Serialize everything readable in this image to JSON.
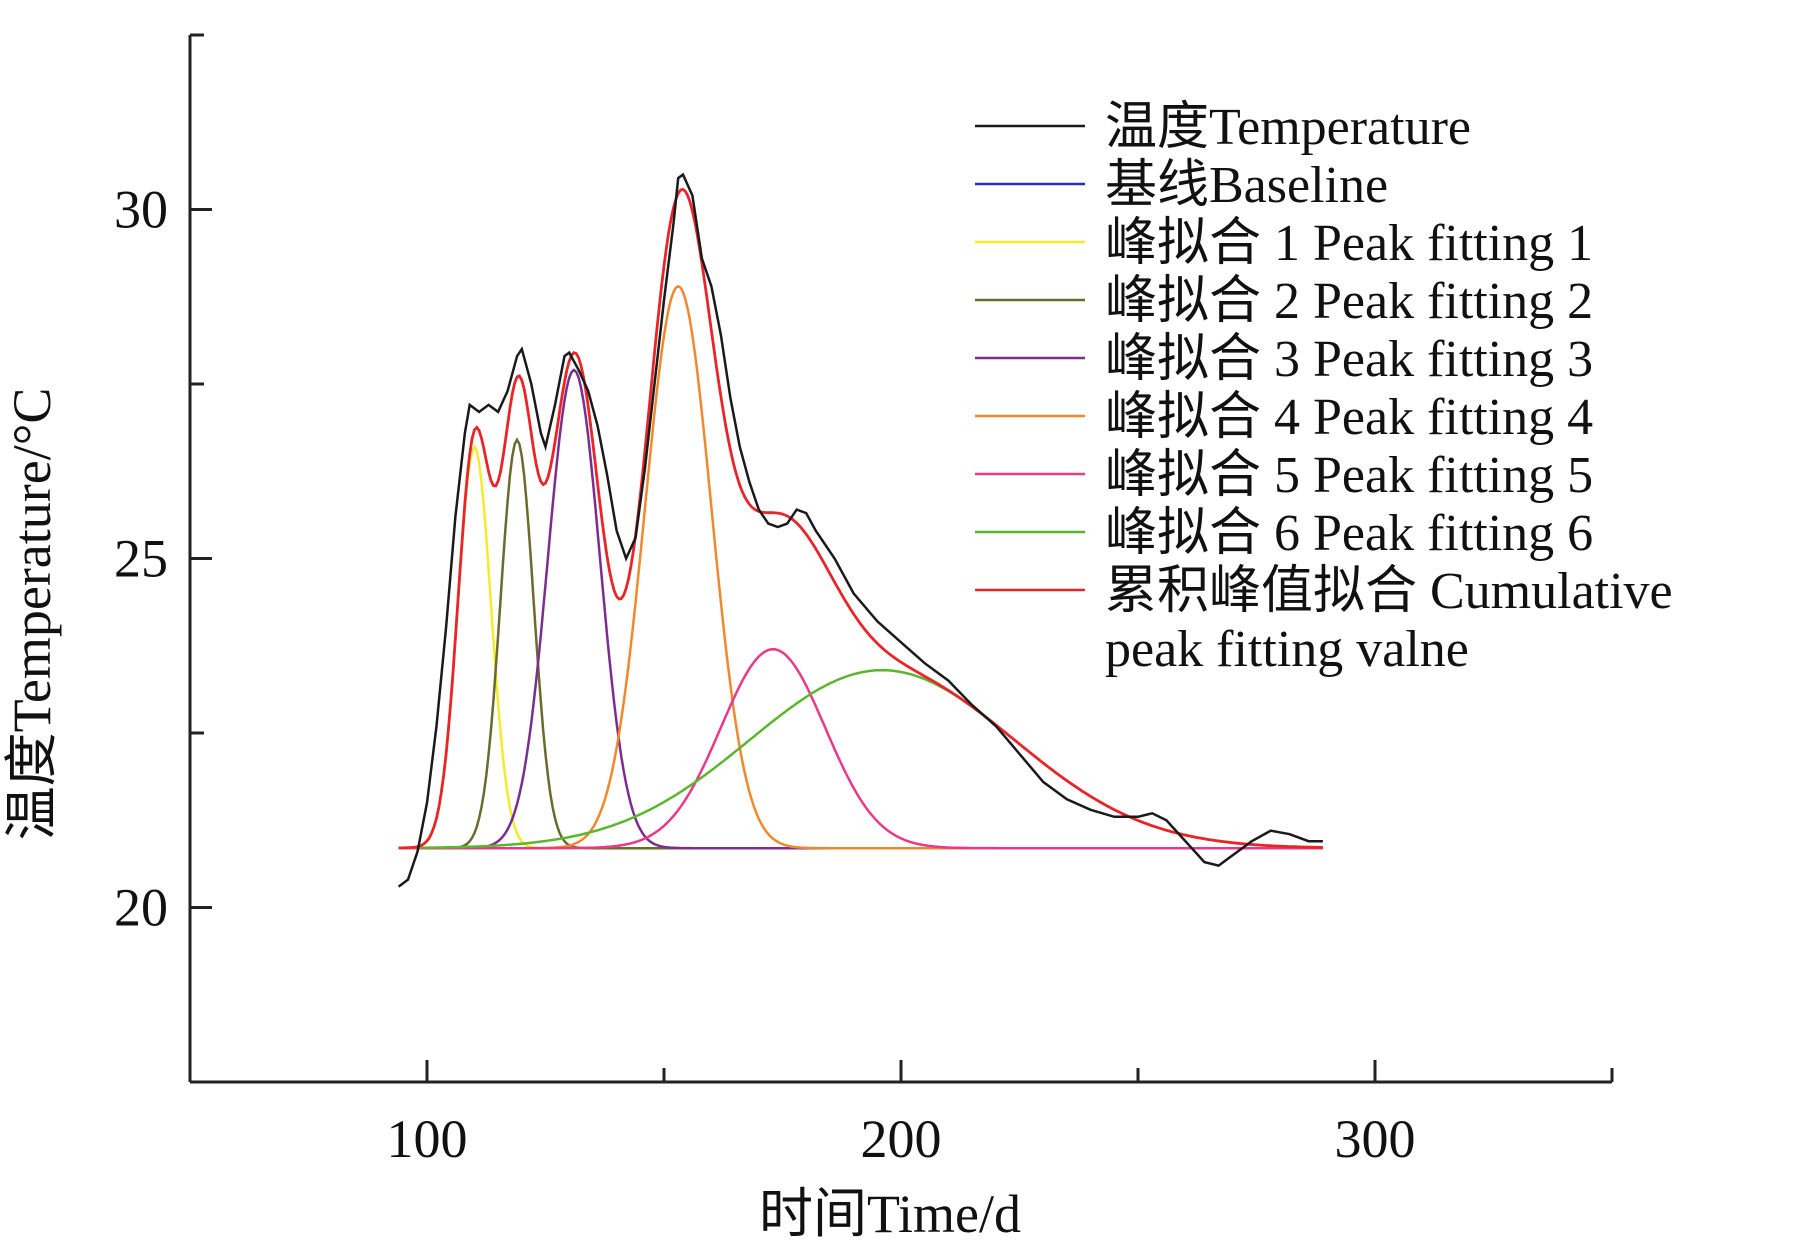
{
  "chart_data": {
    "type": "line",
    "xlabel": "时间Time/d",
    "ylabel": "温度Temperature/°C",
    "xlim": [
      50,
      350
    ],
    "ylim": [
      17.5,
      32.5
    ],
    "x_ticks": [
      100,
      200,
      300
    ],
    "y_ticks": [
      20,
      25,
      30
    ],
    "legend_position": "top-right",
    "series": [
      {
        "name": "温度Temperature",
        "color": "#1a1a1a",
        "points": [
          [
            94,
            20.3
          ],
          [
            96,
            20.4
          ],
          [
            98,
            20.8
          ],
          [
            100,
            21.5
          ],
          [
            102,
            22.6
          ],
          [
            104,
            24.0
          ],
          [
            106,
            25.6
          ],
          [
            108,
            26.8
          ],
          [
            109,
            27.2
          ],
          [
            111,
            27.1
          ],
          [
            113,
            27.2
          ],
          [
            115,
            27.1
          ],
          [
            117,
            27.4
          ],
          [
            119,
            27.9
          ],
          [
            120,
            28.0
          ],
          [
            122,
            27.5
          ],
          [
            124,
            26.8
          ],
          [
            125,
            26.6
          ],
          [
            127,
            27.2
          ],
          [
            129,
            27.9
          ],
          [
            130,
            27.95
          ],
          [
            132,
            27.7
          ],
          [
            134,
            27.4
          ],
          [
            136,
            26.9
          ],
          [
            138,
            26.2
          ],
          [
            140,
            25.4
          ],
          [
            142,
            25.0
          ],
          [
            144,
            25.3
          ],
          [
            146,
            26.3
          ],
          [
            148,
            27.5
          ],
          [
            150,
            28.7
          ],
          [
            152,
            29.8
          ],
          [
            153,
            30.45
          ],
          [
            154,
            30.5
          ],
          [
            156,
            30.2
          ],
          [
            158,
            29.3
          ],
          [
            160,
            28.9
          ],
          [
            162,
            28.2
          ],
          [
            164,
            27.3
          ],
          [
            166,
            26.6
          ],
          [
            168,
            26.1
          ],
          [
            170,
            25.7
          ],
          [
            172,
            25.5
          ],
          [
            174,
            25.45
          ],
          [
            176,
            25.5
          ],
          [
            178,
            25.7
          ],
          [
            180,
            25.65
          ],
          [
            182,
            25.4
          ],
          [
            186,
            25.0
          ],
          [
            190,
            24.5
          ],
          [
            195,
            24.1
          ],
          [
            200,
            23.8
          ],
          [
            205,
            23.5
          ],
          [
            210,
            23.25
          ],
          [
            215,
            22.9
          ],
          [
            220,
            22.6
          ],
          [
            225,
            22.2
          ],
          [
            230,
            21.8
          ],
          [
            235,
            21.55
          ],
          [
            240,
            21.4
          ],
          [
            245,
            21.3
          ],
          [
            250,
            21.3
          ],
          [
            253,
            21.35
          ],
          [
            256,
            21.25
          ],
          [
            260,
            20.95
          ],
          [
            264,
            20.65
          ],
          [
            267,
            20.6
          ],
          [
            270,
            20.75
          ],
          [
            274,
            20.95
          ],
          [
            278,
            21.1
          ],
          [
            282,
            21.05
          ],
          [
            286,
            20.95
          ],
          [
            289,
            20.95
          ]
        ]
      },
      {
        "name": "基线Baseline",
        "color": "#2b2bb8",
        "baseline": 20.85,
        "x_range": [
          94,
          289
        ]
      },
      {
        "name": "峰拟合 1 Peak fitting 1",
        "color": "#f2ec2a",
        "peak": {
          "center": 110,
          "height": 26.6,
          "sigma": 3.5
        }
      },
      {
        "name": "峰拟合 2 Peak fitting 2",
        "color": "#6b6b2e",
        "peak": {
          "center": 119,
          "height": 26.7,
          "sigma": 3.5
        }
      },
      {
        "name": "峰拟合 3 Peak fitting 3",
        "color": "#7a2f8f",
        "peak": {
          "center": 131,
          "height": 27.7,
          "sigma": 5.5
        }
      },
      {
        "name": "峰拟合 4 Peak fitting 4",
        "color": "#f0892e",
        "peak": {
          "center": 153,
          "height": 28.9,
          "sigma": 7
        }
      },
      {
        "name": "峰拟合 5 Peak fitting 5",
        "color": "#e8398a",
        "peak": {
          "center": 173,
          "height": 23.7,
          "sigma": 11
        }
      },
      {
        "name": "峰拟合 6 Peak fitting 6",
        "color": "#5cb52f",
        "peak": {
          "center": 196,
          "height": 23.4,
          "sigma": 28
        }
      },
      {
        "name": "累积峰值拟合 Cumulative peak fitting valne",
        "color": "#e8262a",
        "cumulative": true
      }
    ]
  },
  "legend": [
    {
      "label": "温度Temperature",
      "color": "#1a1a1a"
    },
    {
      "label": "基线Baseline",
      "color": "#2b2bb8"
    },
    {
      "label": "峰拟合 1 Peak fitting 1",
      "color": "#f2ec2a"
    },
    {
      "label": "峰拟合 2 Peak fitting 2",
      "color": "#6b6b2e"
    },
    {
      "label": "峰拟合 3 Peak fitting 3",
      "color": "#7a2f8f"
    },
    {
      "label": "峰拟合 4 Peak fitting 4",
      "color": "#f0892e"
    },
    {
      "label": "峰拟合 5 Peak fitting 5",
      "color": "#e8398a"
    },
    {
      "label": "峰拟合 6 Peak fitting 6",
      "color": "#5cb52f"
    },
    {
      "label": "累积峰值拟合 Cumulative",
      "label_line2": "peak fitting valne",
      "color": "#e8262a"
    }
  ]
}
